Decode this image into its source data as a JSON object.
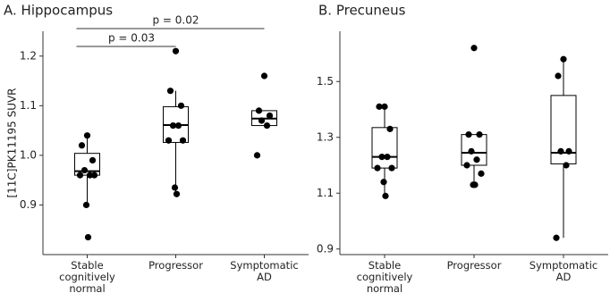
{
  "chart_data": [
    {
      "type": "box",
      "title": "A. Hippocampus",
      "y_label": "[11C]PK11195 SUVR",
      "categories": [
        "Stable cognitively normal",
        "Progressor",
        "Symptomatic AD"
      ],
      "ylim": [
        0.8,
        1.25
      ],
      "yticks": [
        0.9,
        {
          "value": 1,
          "label": "1.0"
        },
        1.1,
        1.2
      ],
      "boxes": [
        {
          "whisker_low": 0.9,
          "q1": 0.96,
          "median": 0.968,
          "q3": 1.004,
          "whisker_high": 1.04,
          "points": [
            1.04,
            1.02,
            0.99,
            0.97,
            0.96,
            0.96,
            0.96,
            0.9,
            0.835
          ]
        },
        {
          "whisker_low": 0.922,
          "q1": 1.026,
          "median": 1.061,
          "q3": 1.098,
          "whisker_high": 1.13,
          "points": [
            1.21,
            1.13,
            1.1,
            1.06,
            1.06,
            1.03,
            1.03,
            0.935,
            0.922
          ]
        },
        {
          "whisker_low": 1.06,
          "q1": 1.06,
          "median": 1.074,
          "q3": 1.09,
          "whisker_high": 1.09,
          "points": [
            1.16,
            1.09,
            1.08,
            1.07,
            1.06,
            1.0
          ]
        }
      ],
      "annotations": [
        "p = 0.03",
        "p = 0.02"
      ],
      "color": "#000000"
    },
    {
      "type": "box",
      "title": "B. Precuneus",
      "categories": [
        "Stable cognitively normal",
        "Progressor",
        "Symptomatic AD"
      ],
      "ylim": [
        0.88,
        1.68
      ],
      "yticks": [
        0.9,
        1.1,
        1.3,
        1.5
      ],
      "boxes": [
        {
          "whisker_low": 1.09,
          "q1": 1.19,
          "median": 1.23,
          "q3": 1.335,
          "whisker_high": 1.41,
          "points": [
            1.41,
            1.41,
            1.33,
            1.23,
            1.23,
            1.19,
            1.19,
            1.14,
            1.09
          ]
        },
        {
          "whisker_low": 1.13,
          "q1": 1.2,
          "median": 1.245,
          "q3": 1.31,
          "whisker_high": 1.31,
          "points": [
            1.62,
            1.31,
            1.31,
            1.25,
            1.22,
            1.2,
            1.17,
            1.13,
            1.13
          ]
        },
        {
          "whisker_low": 0.94,
          "q1": 1.205,
          "median": 1.245,
          "q3": 1.45,
          "whisker_high": 1.58,
          "points": [
            1.58,
            1.52,
            1.25,
            1.25,
            1.2,
            0.94
          ]
        }
      ],
      "color": "#000000"
    }
  ]
}
